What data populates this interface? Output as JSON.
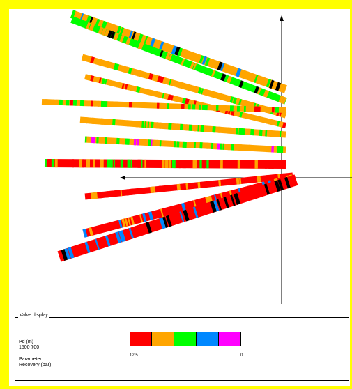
{
  "legend": {
    "title": "Valve display",
    "pd_label": "Pd (m)",
    "pd_value": "1500 700",
    "parameter_label": "Parameter:",
    "parameter_value": "Recovery (bar)",
    "tick_left": "12.5",
    "tick_right": "0"
  },
  "colors": {
    "background": "#ffff00",
    "scale": [
      "#ff0000",
      "#ffa500",
      "#00ff00",
      "#0088ff",
      "#ff00ff"
    ],
    "line_base": "#ffa500"
  },
  "lines": [
    {
      "from_color": "#ffa500",
      "mix": [
        "#00ff00",
        "#ffa500",
        "#000000",
        "#0088ff"
      ]
    },
    {
      "from_color": "#00ff00",
      "mix": [
        "#00ff00",
        "#ffa500",
        "#000000"
      ]
    },
    {
      "from_color": "#ffa500",
      "mix": [
        "#ffa500",
        "#00ff00",
        "#ff0000"
      ]
    },
    {
      "from_color": "#ffa500",
      "mix": [
        "#ffa500",
        "#00ff00",
        "#ff0000"
      ]
    },
    {
      "from_color": "#ffa500",
      "mix": [
        "#ffa500",
        "#ff0000",
        "#00ff00"
      ]
    },
    {
      "from_color": "#ffa500",
      "mix": [
        "#ffa500",
        "#00ff00"
      ]
    },
    {
      "from_color": "#ffa500",
      "mix": [
        "#ffa500",
        "#ff00ff",
        "#00ff00"
      ]
    },
    {
      "from_color": "#ff0000",
      "mix": [
        "#ff0000",
        "#ffa500",
        "#00ff00"
      ]
    },
    {
      "from_color": "#ff0000",
      "mix": [
        "#ff0000",
        "#ffa500"
      ]
    },
    {
      "from_color": "#ff0000",
      "mix": [
        "#ff0000",
        "#ffa500",
        "#0088ff"
      ]
    },
    {
      "from_color": "#ff0000",
      "mix": [
        "#ff0000",
        "#0088ff",
        "#000000"
      ]
    }
  ]
}
